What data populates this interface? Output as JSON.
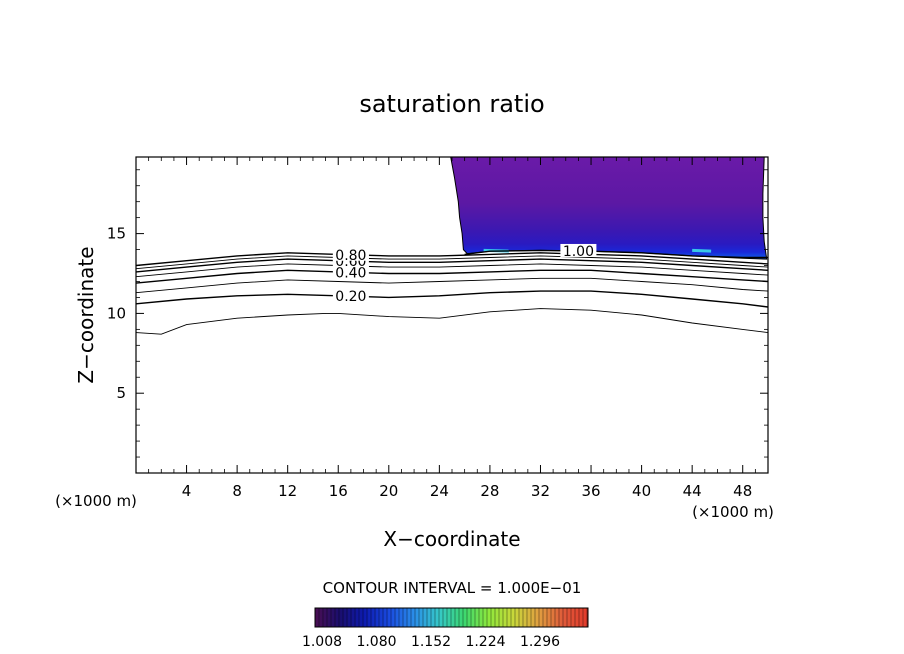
{
  "chart_data": {
    "type": "contour",
    "title": "saturation ratio",
    "xlabel": "X−coordinate",
    "ylabel": "Z−coordinate",
    "x_unit_left": "(×1000 m)",
    "x_unit_right": "(×1000 m)",
    "xlim": [
      0,
      50
    ],
    "ylim": [
      0,
      19.8
    ],
    "x_ticks": [
      4,
      8,
      12,
      16,
      20,
      24,
      28,
      32,
      36,
      40,
      44,
      48
    ],
    "y_ticks": [
      5,
      10,
      15
    ],
    "contour_interval_label": "CONTOUR INTERVAL = 1.000E−01",
    "contour_lines": [
      {
        "level": 0.1,
        "label": "",
        "points": [
          [
            0,
            8.8
          ],
          [
            2,
            8.7
          ],
          [
            4,
            9.3
          ],
          [
            8,
            9.7
          ],
          [
            12,
            9.9
          ],
          [
            15,
            10.0
          ],
          [
            16,
            10.0
          ],
          [
            20,
            9.8
          ],
          [
            24,
            9.7
          ],
          [
            28,
            10.1
          ],
          [
            32,
            10.3
          ],
          [
            36,
            10.2
          ],
          [
            40,
            9.9
          ],
          [
            44,
            9.4
          ],
          [
            48,
            9.0
          ],
          [
            50,
            8.8
          ]
        ]
      },
      {
        "level": 0.2,
        "label": "0.20",
        "label_x": 17.0,
        "points": [
          [
            0,
            10.6
          ],
          [
            4,
            10.9
          ],
          [
            8,
            11.1
          ],
          [
            12,
            11.2
          ],
          [
            16,
            11.1
          ],
          [
            20,
            11.0
          ],
          [
            24,
            11.1
          ],
          [
            28,
            11.3
          ],
          [
            32,
            11.4
          ],
          [
            36,
            11.4
          ],
          [
            40,
            11.2
          ],
          [
            44,
            10.9
          ],
          [
            48,
            10.6
          ],
          [
            50,
            10.4
          ]
        ]
      },
      {
        "level": 0.3,
        "label": "",
        "points": [
          [
            0,
            11.3
          ],
          [
            4,
            11.6
          ],
          [
            8,
            11.9
          ],
          [
            12,
            12.1
          ],
          [
            16,
            12.0
          ],
          [
            20,
            11.9
          ],
          [
            24,
            12.0
          ],
          [
            28,
            12.1
          ],
          [
            32,
            12.2
          ],
          [
            36,
            12.2
          ],
          [
            40,
            12.0
          ],
          [
            44,
            11.8
          ],
          [
            48,
            11.5
          ],
          [
            50,
            11.4
          ]
        ]
      },
      {
        "level": 0.4,
        "label": "0.40",
        "label_x": 17.0,
        "points": [
          [
            0,
            11.9
          ],
          [
            4,
            12.2
          ],
          [
            8,
            12.5
          ],
          [
            12,
            12.7
          ],
          [
            16,
            12.6
          ],
          [
            20,
            12.5
          ],
          [
            24,
            12.5
          ],
          [
            28,
            12.6
          ],
          [
            32,
            12.7
          ],
          [
            36,
            12.7
          ],
          [
            40,
            12.5
          ],
          [
            44,
            12.3
          ],
          [
            48,
            12.1
          ],
          [
            50,
            12.0
          ]
        ]
      },
      {
        "level": 0.5,
        "label": "",
        "points": [
          [
            0,
            12.3
          ],
          [
            4,
            12.6
          ],
          [
            8,
            12.9
          ],
          [
            12,
            13.1
          ],
          [
            16,
            13.0
          ],
          [
            20,
            12.9
          ],
          [
            24,
            12.9
          ],
          [
            28,
            13.0
          ],
          [
            32,
            13.1
          ],
          [
            36,
            13.0
          ],
          [
            40,
            12.9
          ],
          [
            44,
            12.7
          ],
          [
            48,
            12.5
          ],
          [
            50,
            12.4
          ]
        ]
      },
      {
        "level": 0.6,
        "label": "0.60",
        "label_x": 17.0,
        "points": [
          [
            0,
            12.6
          ],
          [
            4,
            12.9
          ],
          [
            8,
            13.2
          ],
          [
            12,
            13.4
          ],
          [
            16,
            13.3
          ],
          [
            20,
            13.2
          ],
          [
            24,
            13.2
          ],
          [
            28,
            13.3
          ],
          [
            32,
            13.4
          ],
          [
            36,
            13.3
          ],
          [
            40,
            13.2
          ],
          [
            44,
            13.0
          ],
          [
            48,
            12.8
          ],
          [
            50,
            12.7
          ]
        ]
      },
      {
        "level": 0.7,
        "label": "",
        "points": [
          [
            0,
            12.8
          ],
          [
            4,
            13.1
          ],
          [
            8,
            13.4
          ],
          [
            12,
            13.6
          ],
          [
            16,
            13.5
          ],
          [
            20,
            13.4
          ],
          [
            24,
            13.4
          ],
          [
            28,
            13.5
          ],
          [
            32,
            13.6
          ],
          [
            36,
            13.5
          ],
          [
            40,
            13.4
          ],
          [
            44,
            13.2
          ],
          [
            48,
            13.0
          ],
          [
            50,
            12.9
          ]
        ]
      },
      {
        "level": 0.8,
        "label": "0.80",
        "label_x": 17.0,
        "points": [
          [
            0,
            13.0
          ],
          [
            4,
            13.3
          ],
          [
            8,
            13.6
          ],
          [
            12,
            13.8
          ],
          [
            16,
            13.7
          ],
          [
            20,
            13.6
          ],
          [
            24,
            13.6
          ],
          [
            28,
            13.7
          ],
          [
            32,
            13.8
          ],
          [
            36,
            13.7
          ],
          [
            40,
            13.6
          ],
          [
            44,
            13.4
          ],
          [
            48,
            13.2
          ],
          [
            50,
            13.1
          ]
        ]
      },
      {
        "level": 1.0,
        "label": "1.00",
        "label_x": 35.0,
        "points": [
          [
            26,
            13.7
          ],
          [
            28,
            13.9
          ],
          [
            32,
            13.95
          ],
          [
            36,
            13.9
          ],
          [
            40,
            13.8
          ],
          [
            44,
            13.6
          ],
          [
            48,
            13.5
          ],
          [
            50,
            13.5
          ]
        ]
      }
    ],
    "fill_region": {
      "description_level_range": [
        1.008,
        1.296
      ],
      "boundary": [
        [
          24.9,
          19.8
        ],
        [
          25.2,
          18.5
        ],
        [
          25.5,
          17.0
        ],
        [
          25.6,
          16.0
        ],
        [
          25.8,
          15.0
        ],
        [
          25.9,
          14.0
        ],
        [
          26.2,
          13.75
        ],
        [
          28,
          13.9
        ],
        [
          32,
          13.95
        ],
        [
          36,
          13.9
        ],
        [
          40,
          13.8
        ],
        [
          44,
          13.6
        ],
        [
          48,
          13.45
        ],
        [
          49.9,
          13.4
        ],
        [
          49.7,
          14.5
        ],
        [
          49.6,
          16.0
        ],
        [
          49.6,
          17.5
        ],
        [
          49.7,
          19.8
        ]
      ]
    },
    "colorbar": {
      "tick_labels": [
        "1.008",
        "1.080",
        "1.152",
        "1.224",
        "1.296"
      ],
      "range": [
        1.008,
        1.296
      ],
      "colors": [
        "#4a0e52",
        "#1a0e6e",
        "#0d1bb0",
        "#1a4be0",
        "#2a8ee8",
        "#36c8c8",
        "#3cd870",
        "#8ee83c",
        "#c8d83a",
        "#e0a040",
        "#e05a3a",
        "#e23a2a"
      ]
    }
  }
}
